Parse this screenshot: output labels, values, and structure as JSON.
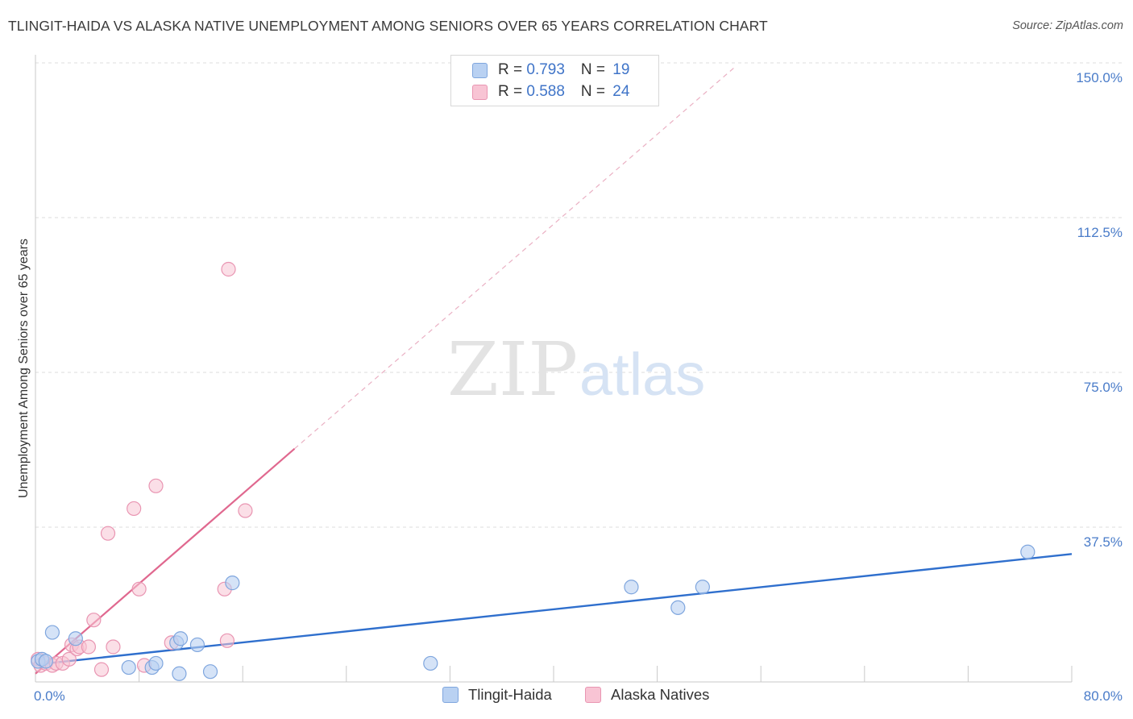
{
  "header": {
    "title": "TLINGIT-HAIDA VS ALASKA NATIVE UNEMPLOYMENT AMONG SENIORS OVER 65 YEARS CORRELATION CHART",
    "source": "Source: ZipAtlas.com"
  },
  "watermark": {
    "zip": "ZIP",
    "atlas": "atlas"
  },
  "colors": {
    "blue_fill": "#b9d1f2",
    "blue_stroke": "#7fa6de",
    "blue_line": "#2f6fcd",
    "pink_fill": "#f8c4d4",
    "pink_stroke": "#e995b2",
    "pink_line": "#e0688f",
    "tick_text": "#4a7cc9"
  },
  "legend": {
    "rows": [
      {
        "r_label": "R = ",
        "r_value": "0.793",
        "n_label": "N = ",
        "n_value": "19"
      },
      {
        "r_label": "R = ",
        "r_value": "0.588",
        "n_label": "N = ",
        "n_value": "24"
      }
    ]
  },
  "chart_data": {
    "type": "scatter",
    "title": "TLINGIT-HAIDA VS ALASKA NATIVE UNEMPLOYMENT AMONG SENIORS OVER 65 YEARS CORRELATION CHART",
    "xlabel": "",
    "ylabel": "Unemployment Among Seniors over 65 years",
    "xlim": [
      0,
      80
    ],
    "ylim": [
      0,
      150
    ],
    "x_tick_labels": [
      "0.0%",
      "80.0%"
    ],
    "y_ticks": [
      37.5,
      75,
      112.5,
      150
    ],
    "y_tick_labels": [
      "37.5%",
      "75.0%",
      "112.5%",
      "150.0%"
    ],
    "grid": true,
    "legend_position": "top-center",
    "series": [
      {
        "name": "Tlingit-Haida",
        "r": 0.793,
        "n": 19,
        "points": [
          [
            0.2,
            5.0
          ],
          [
            0.5,
            5.5
          ],
          [
            0.8,
            5.0
          ],
          [
            1.3,
            12.0
          ],
          [
            3.1,
            10.5
          ],
          [
            7.2,
            3.5
          ],
          [
            9.0,
            3.5
          ],
          [
            9.3,
            4.5
          ],
          [
            10.9,
            9.5
          ],
          [
            11.1,
            2.0
          ],
          [
            11.2,
            10.5
          ],
          [
            12.5,
            9.0
          ],
          [
            13.5,
            2.5
          ],
          [
            15.2,
            24.0
          ],
          [
            30.5,
            4.5
          ],
          [
            46.0,
            23.0
          ],
          [
            49.6,
            18.0
          ],
          [
            51.5,
            23.0
          ],
          [
            76.6,
            31.5
          ]
        ],
        "trend": {
          "x": [
            0,
            80
          ],
          "y": [
            4.2,
            31.0
          ]
        }
      },
      {
        "name": "Alaska Natives",
        "r": 0.588,
        "n": 24,
        "points": [
          [
            0.2,
            5.5
          ],
          [
            0.4,
            4.0
          ],
          [
            0.8,
            4.5
          ],
          [
            1.3,
            4.0
          ],
          [
            1.6,
            4.5
          ],
          [
            2.1,
            4.5
          ],
          [
            2.6,
            5.5
          ],
          [
            2.8,
            9.0
          ],
          [
            3.2,
            8.0
          ],
          [
            3.4,
            8.5
          ],
          [
            4.1,
            8.5
          ],
          [
            4.5,
            15.0
          ],
          [
            5.1,
            3.0
          ],
          [
            5.6,
            36.0
          ],
          [
            6.0,
            8.5
          ],
          [
            7.6,
            42.0
          ],
          [
            8.0,
            22.5
          ],
          [
            8.4,
            4.0
          ],
          [
            9.3,
            47.5
          ],
          [
            10.5,
            9.5
          ],
          [
            14.6,
            22.5
          ],
          [
            14.8,
            10.0
          ],
          [
            14.9,
            100.0
          ],
          [
            16.2,
            41.5
          ]
        ],
        "trend_solid": {
          "x": [
            0,
            20
          ],
          "y": [
            2.0,
            56.5
          ]
        },
        "trend_dashed": {
          "x": [
            20,
            54
          ],
          "y": [
            56.5,
            149.0
          ]
        }
      }
    ]
  },
  "bottom_legend": {
    "items": [
      {
        "label": "Tlingit-Haida"
      },
      {
        "label": "Alaska Natives"
      }
    ]
  }
}
